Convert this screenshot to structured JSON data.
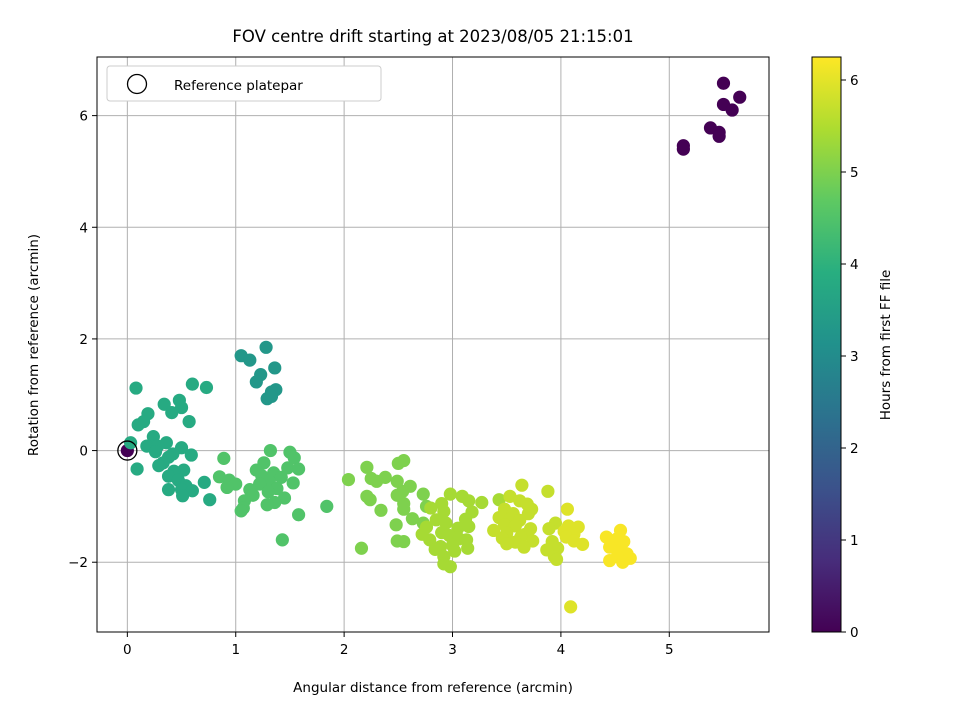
{
  "chart_data": {
    "type": "scatter",
    "title": "FOV centre drift starting at 2023/08/05 21:15:01",
    "xlabel": "Angular distance from reference (arcmin)",
    "ylabel": "Rotation from reference (arcmin)",
    "xlim": [
      -0.28,
      5.92
    ],
    "ylim": [
      -3.25,
      7.05
    ],
    "xticks": [
      0,
      1,
      2,
      3,
      4,
      5
    ],
    "yticks": [
      -2,
      0,
      2,
      4,
      6
    ],
    "grid": true,
    "legend": {
      "placement": "top-left",
      "entries": [
        "Reference platepar"
      ]
    },
    "reference_point": {
      "x": 0,
      "y": 0,
      "label": "Reference platepar"
    },
    "colorbar": {
      "label": "Hours from first FF file",
      "colormap": "viridis",
      "range": [
        0,
        6.25
      ],
      "ticks": [
        0,
        1,
        2,
        3,
        4,
        5,
        6
      ]
    },
    "points": [
      {
        "x": 5.5,
        "y": 6.58,
        "c": 0.0
      },
      {
        "x": 5.65,
        "y": 6.33,
        "c": 0.0
      },
      {
        "x": 5.5,
        "y": 6.2,
        "c": 0.0
      },
      {
        "x": 5.58,
        "y": 6.1,
        "c": 0.0
      },
      {
        "x": 5.38,
        "y": 5.78,
        "c": 0.0
      },
      {
        "x": 5.46,
        "y": 5.7,
        "c": 0.0
      },
      {
        "x": 5.46,
        "y": 5.63,
        "c": 0.0
      },
      {
        "x": 5.13,
        "y": 5.46,
        "c": 0.0
      },
      {
        "x": 5.13,
        "y": 5.4,
        "c": 0.0
      },
      {
        "x": 0.0,
        "y": 0.0,
        "c": 0.0
      },
      {
        "x": 1.28,
        "y": 1.85,
        "c": 3.3
      },
      {
        "x": 1.05,
        "y": 1.7,
        "c": 3.3
      },
      {
        "x": 1.13,
        "y": 1.62,
        "c": 3.3
      },
      {
        "x": 1.36,
        "y": 1.48,
        "c": 3.3
      },
      {
        "x": 1.23,
        "y": 1.36,
        "c": 3.3
      },
      {
        "x": 1.19,
        "y": 1.23,
        "c": 3.3
      },
      {
        "x": 1.37,
        "y": 1.09,
        "c": 3.3
      },
      {
        "x": 1.33,
        "y": 1.05,
        "c": 3.3
      },
      {
        "x": 1.29,
        "y": 0.93,
        "c": 3.3
      },
      {
        "x": 1.33,
        "y": 0.97,
        "c": 3.3
      },
      {
        "x": 0.08,
        "y": 1.12,
        "c": 3.8
      },
      {
        "x": 0.6,
        "y": 1.19,
        "c": 3.8
      },
      {
        "x": 0.73,
        "y": 1.13,
        "c": 3.8
      },
      {
        "x": 0.48,
        "y": 0.9,
        "c": 3.8
      },
      {
        "x": 0.34,
        "y": 0.83,
        "c": 3.8
      },
      {
        "x": 0.5,
        "y": 0.77,
        "c": 3.8
      },
      {
        "x": 0.41,
        "y": 0.68,
        "c": 3.8
      },
      {
        "x": 0.19,
        "y": 0.66,
        "c": 3.8
      },
      {
        "x": 0.57,
        "y": 0.52,
        "c": 3.8
      },
      {
        "x": 0.15,
        "y": 0.52,
        "c": 3.8
      },
      {
        "x": 0.1,
        "y": 0.46,
        "c": 3.8
      },
      {
        "x": 0.24,
        "y": 0.25,
        "c": 3.8
      },
      {
        "x": 0.36,
        "y": 0.14,
        "c": 3.8
      },
      {
        "x": 0.18,
        "y": 0.08,
        "c": 3.8
      },
      {
        "x": 0.28,
        "y": 0.08,
        "c": 3.8
      },
      {
        "x": 0.5,
        "y": 0.05,
        "c": 3.8
      },
      {
        "x": 0.26,
        "y": -0.02,
        "c": 3.8
      },
      {
        "x": 0.42,
        "y": -0.06,
        "c": 3.8
      },
      {
        "x": 0.59,
        "y": -0.08,
        "c": 3.8
      },
      {
        "x": 0.38,
        "y": -0.12,
        "c": 3.8
      },
      {
        "x": 0.33,
        "y": -0.22,
        "c": 3.8
      },
      {
        "x": 0.29,
        "y": -0.27,
        "c": 3.8
      },
      {
        "x": 0.09,
        "y": -0.33,
        "c": 3.8
      },
      {
        "x": 0.52,
        "y": -0.35,
        "c": 3.8
      },
      {
        "x": 0.43,
        "y": -0.37,
        "c": 3.8
      },
      {
        "x": 0.38,
        "y": -0.46,
        "c": 3.8
      },
      {
        "x": 0.47,
        "y": -0.53,
        "c": 3.8
      },
      {
        "x": 0.71,
        "y": -0.57,
        "c": 3.8
      },
      {
        "x": 0.54,
        "y": -0.63,
        "c": 3.8
      },
      {
        "x": 0.5,
        "y": -0.7,
        "c": 3.8
      },
      {
        "x": 0.38,
        "y": -0.7,
        "c": 3.8
      },
      {
        "x": 0.6,
        "y": -0.72,
        "c": 3.8
      },
      {
        "x": 0.51,
        "y": -0.81,
        "c": 3.8
      },
      {
        "x": 0.76,
        "y": -0.88,
        "c": 3.8
      },
      {
        "x": 0.03,
        "y": 0.14,
        "c": 3.8
      },
      {
        "x": 1.32,
        "y": 0.0,
        "c": 4.5
      },
      {
        "x": 1.5,
        "y": -0.03,
        "c": 4.5
      },
      {
        "x": 0.89,
        "y": -0.14,
        "c": 4.5
      },
      {
        "x": 1.54,
        "y": -0.13,
        "c": 4.5
      },
      {
        "x": 1.26,
        "y": -0.22,
        "c": 4.5
      },
      {
        "x": 1.48,
        "y": -0.31,
        "c": 4.5
      },
      {
        "x": 1.58,
        "y": -0.33,
        "c": 4.5
      },
      {
        "x": 1.19,
        "y": -0.35,
        "c": 4.5
      },
      {
        "x": 1.35,
        "y": -0.4,
        "c": 4.5
      },
      {
        "x": 1.24,
        "y": -0.45,
        "c": 4.5
      },
      {
        "x": 0.85,
        "y": -0.47,
        "c": 4.5
      },
      {
        "x": 0.94,
        "y": -0.53,
        "c": 4.5
      },
      {
        "x": 1.42,
        "y": -0.48,
        "c": 4.5
      },
      {
        "x": 1.31,
        "y": -0.55,
        "c": 4.5
      },
      {
        "x": 1.53,
        "y": -0.58,
        "c": 4.5
      },
      {
        "x": 1.0,
        "y": -0.6,
        "c": 4.5
      },
      {
        "x": 1.22,
        "y": -0.6,
        "c": 4.5
      },
      {
        "x": 0.92,
        "y": -0.66,
        "c": 4.5
      },
      {
        "x": 1.38,
        "y": -0.68,
        "c": 4.5
      },
      {
        "x": 1.13,
        "y": -0.7,
        "c": 4.5
      },
      {
        "x": 1.3,
        "y": -0.74,
        "c": 4.5
      },
      {
        "x": 1.16,
        "y": -0.8,
        "c": 4.5
      },
      {
        "x": 1.45,
        "y": -0.85,
        "c": 4.5
      },
      {
        "x": 1.08,
        "y": -0.9,
        "c": 4.5
      },
      {
        "x": 1.36,
        "y": -0.93,
        "c": 4.5
      },
      {
        "x": 1.29,
        "y": -0.97,
        "c": 4.5
      },
      {
        "x": 1.07,
        "y": -1.03,
        "c": 4.5
      },
      {
        "x": 1.84,
        "y": -1.0,
        "c": 4.5
      },
      {
        "x": 1.05,
        "y": -1.08,
        "c": 4.5
      },
      {
        "x": 1.58,
        "y": -1.15,
        "c": 4.5
      },
      {
        "x": 1.43,
        "y": -1.6,
        "c": 4.5
      },
      {
        "x": 2.55,
        "y": -0.18,
        "c": 5.0
      },
      {
        "x": 2.5,
        "y": -0.23,
        "c": 5.0
      },
      {
        "x": 2.21,
        "y": -0.3,
        "c": 5.0
      },
      {
        "x": 2.38,
        "y": -0.48,
        "c": 5.0
      },
      {
        "x": 2.25,
        "y": -0.5,
        "c": 5.0
      },
      {
        "x": 2.3,
        "y": -0.55,
        "c": 5.0
      },
      {
        "x": 2.49,
        "y": -0.55,
        "c": 5.0
      },
      {
        "x": 2.61,
        "y": -0.64,
        "c": 5.0
      },
      {
        "x": 2.04,
        "y": -0.52,
        "c": 5.0
      },
      {
        "x": 2.54,
        "y": -0.73,
        "c": 5.0
      },
      {
        "x": 2.73,
        "y": -0.78,
        "c": 5.0
      },
      {
        "x": 2.49,
        "y": -0.8,
        "c": 5.0
      },
      {
        "x": 2.24,
        "y": -0.88,
        "c": 5.0
      },
      {
        "x": 2.21,
        "y": -0.82,
        "c": 5.0
      },
      {
        "x": 2.55,
        "y": -0.95,
        "c": 5.0
      },
      {
        "x": 2.34,
        "y": -1.07,
        "c": 5.0
      },
      {
        "x": 2.76,
        "y": -1.0,
        "c": 5.0
      },
      {
        "x": 2.55,
        "y": -1.05,
        "c": 5.0
      },
      {
        "x": 2.48,
        "y": -1.33,
        "c": 5.0
      },
      {
        "x": 2.63,
        "y": -1.22,
        "c": 5.0
      },
      {
        "x": 2.73,
        "y": -1.3,
        "c": 5.0
      },
      {
        "x": 2.16,
        "y": -1.75,
        "c": 5.0
      },
      {
        "x": 2.49,
        "y": -1.62,
        "c": 5.0
      },
      {
        "x": 2.55,
        "y": -1.63,
        "c": 5.0
      },
      {
        "x": 2.98,
        "y": -0.78,
        "c": 5.4
      },
      {
        "x": 3.09,
        "y": -0.82,
        "c": 5.4
      },
      {
        "x": 3.15,
        "y": -0.9,
        "c": 5.4
      },
      {
        "x": 3.27,
        "y": -0.93,
        "c": 5.4
      },
      {
        "x": 3.43,
        "y": -0.88,
        "c": 5.4
      },
      {
        "x": 2.9,
        "y": -0.95,
        "c": 5.4
      },
      {
        "x": 2.8,
        "y": -1.03,
        "c": 5.4
      },
      {
        "x": 3.18,
        "y": -1.1,
        "c": 5.4
      },
      {
        "x": 2.92,
        "y": -1.09,
        "c": 5.4
      },
      {
        "x": 3.12,
        "y": -1.23,
        "c": 5.4
      },
      {
        "x": 2.85,
        "y": -1.24,
        "c": 5.4
      },
      {
        "x": 2.94,
        "y": -1.3,
        "c": 5.4
      },
      {
        "x": 2.76,
        "y": -1.37,
        "c": 5.4
      },
      {
        "x": 3.05,
        "y": -1.39,
        "c": 5.4
      },
      {
        "x": 3.15,
        "y": -1.36,
        "c": 5.4
      },
      {
        "x": 2.72,
        "y": -1.5,
        "c": 5.4
      },
      {
        "x": 2.9,
        "y": -1.47,
        "c": 5.4
      },
      {
        "x": 2.97,
        "y": -1.52,
        "c": 5.4
      },
      {
        "x": 3.06,
        "y": -1.58,
        "c": 5.4
      },
      {
        "x": 2.79,
        "y": -1.6,
        "c": 5.4
      },
      {
        "x": 3.13,
        "y": -1.6,
        "c": 5.4
      },
      {
        "x": 3.0,
        "y": -1.7,
        "c": 5.4
      },
      {
        "x": 2.89,
        "y": -1.72,
        "c": 5.4
      },
      {
        "x": 3.14,
        "y": -1.75,
        "c": 5.4
      },
      {
        "x": 3.02,
        "y": -1.8,
        "c": 5.4
      },
      {
        "x": 2.84,
        "y": -1.77,
        "c": 5.4
      },
      {
        "x": 2.92,
        "y": -1.9,
        "c": 5.4
      },
      {
        "x": 2.92,
        "y": -2.03,
        "c": 5.4
      },
      {
        "x": 2.98,
        "y": -2.08,
        "c": 5.4
      },
      {
        "x": 3.64,
        "y": -0.62,
        "c": 5.7
      },
      {
        "x": 3.53,
        "y": -0.82,
        "c": 5.7
      },
      {
        "x": 3.88,
        "y": -0.73,
        "c": 5.7
      },
      {
        "x": 3.62,
        "y": -0.9,
        "c": 5.7
      },
      {
        "x": 3.69,
        "y": -0.96,
        "c": 5.7
      },
      {
        "x": 3.48,
        "y": -1.05,
        "c": 5.7
      },
      {
        "x": 3.73,
        "y": -1.05,
        "c": 5.7
      },
      {
        "x": 3.56,
        "y": -1.13,
        "c": 5.7
      },
      {
        "x": 3.7,
        "y": -1.13,
        "c": 5.7
      },
      {
        "x": 3.43,
        "y": -1.2,
        "c": 5.7
      },
      {
        "x": 3.53,
        "y": -1.23,
        "c": 5.7
      },
      {
        "x": 3.62,
        "y": -1.25,
        "c": 5.7
      },
      {
        "x": 3.48,
        "y": -1.33,
        "c": 5.7
      },
      {
        "x": 3.58,
        "y": -1.35,
        "c": 5.7
      },
      {
        "x": 3.38,
        "y": -1.43,
        "c": 5.7
      },
      {
        "x": 3.72,
        "y": -1.4,
        "c": 5.7
      },
      {
        "x": 3.95,
        "y": -1.3,
        "c": 5.7
      },
      {
        "x": 3.89,
        "y": -1.4,
        "c": 5.7
      },
      {
        "x": 3.5,
        "y": -1.48,
        "c": 5.7
      },
      {
        "x": 3.67,
        "y": -1.5,
        "c": 5.7
      },
      {
        "x": 3.63,
        "y": -1.55,
        "c": 5.7
      },
      {
        "x": 3.46,
        "y": -1.57,
        "c": 5.7
      },
      {
        "x": 3.74,
        "y": -1.62,
        "c": 5.7
      },
      {
        "x": 3.58,
        "y": -1.64,
        "c": 5.7
      },
      {
        "x": 3.92,
        "y": -1.63,
        "c": 5.7
      },
      {
        "x": 3.5,
        "y": -1.67,
        "c": 5.7
      },
      {
        "x": 3.66,
        "y": -1.73,
        "c": 5.7
      },
      {
        "x": 3.97,
        "y": -1.75,
        "c": 5.7
      },
      {
        "x": 3.87,
        "y": -1.78,
        "c": 5.7
      },
      {
        "x": 3.94,
        "y": -1.9,
        "c": 5.7
      },
      {
        "x": 3.96,
        "y": -1.95,
        "c": 5.7
      },
      {
        "x": 4.06,
        "y": -1.05,
        "c": 5.95
      },
      {
        "x": 4.07,
        "y": -1.35,
        "c": 5.95
      },
      {
        "x": 4.16,
        "y": -1.37,
        "c": 5.95
      },
      {
        "x": 4.03,
        "y": -1.45,
        "c": 5.95
      },
      {
        "x": 4.12,
        "y": -1.5,
        "c": 5.95
      },
      {
        "x": 4.05,
        "y": -1.55,
        "c": 5.95
      },
      {
        "x": 4.12,
        "y": -1.62,
        "c": 5.95
      },
      {
        "x": 4.2,
        "y": -1.68,
        "c": 5.95
      },
      {
        "x": 4.09,
        "y": -2.8,
        "c": 5.95
      },
      {
        "x": 4.55,
        "y": -1.43,
        "c": 6.2
      },
      {
        "x": 4.42,
        "y": -1.55,
        "c": 6.2
      },
      {
        "x": 4.52,
        "y": -1.58,
        "c": 6.2
      },
      {
        "x": 4.47,
        "y": -1.65,
        "c": 6.2
      },
      {
        "x": 4.58,
        "y": -1.63,
        "c": 6.2
      },
      {
        "x": 4.45,
        "y": -1.73,
        "c": 6.2
      },
      {
        "x": 4.56,
        "y": -1.78,
        "c": 6.2
      },
      {
        "x": 4.61,
        "y": -1.85,
        "c": 6.2
      },
      {
        "x": 4.52,
        "y": -1.9,
        "c": 6.2
      },
      {
        "x": 4.64,
        "y": -1.93,
        "c": 6.2
      },
      {
        "x": 4.45,
        "y": -1.97,
        "c": 6.2
      },
      {
        "x": 4.57,
        "y": -2.0,
        "c": 6.2
      }
    ]
  }
}
